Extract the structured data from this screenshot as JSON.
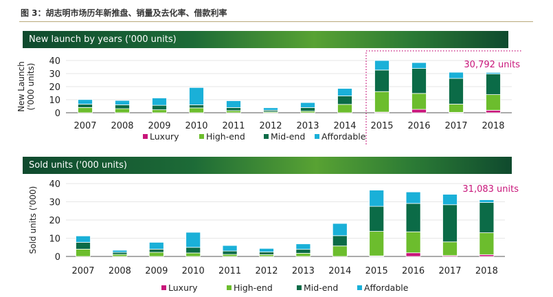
{
  "figure_title": "图 3：胡志明市场历年新推盘、销量及去化率、借款利率",
  "colors": {
    "Luxury": "#c8157a",
    "High-end": "#6cbd2d",
    "Mid-end": "#0b6b47",
    "Affordable": "#1ab0d8",
    "highlight": "#c8157a"
  },
  "chart_data": [
    {
      "type": "bar",
      "stacked": true,
      "title": "New launch by years ('000 units)",
      "ylabel": "New Launch ('000 units)",
      "ylim": [
        0,
        40
      ],
      "yticks": [
        0,
        10,
        20,
        30,
        40
      ],
      "grid": true,
      "legend": "bottom",
      "categories": [
        "2007",
        "2008",
        "2009",
        "2010",
        "2011",
        "2012",
        "2013",
        "2014",
        "2015",
        "2016",
        "2017",
        "2018"
      ],
      "series": [
        {
          "name": "Luxury",
          "values": [
            0,
            0,
            0,
            0,
            0,
            0,
            0,
            0,
            0.5,
            2.6,
            0.3,
            1.9
          ]
        },
        {
          "name": "High-end",
          "values": [
            4,
            3.1,
            2.3,
            3.7,
            1.6,
            0.7,
            1.2,
            6.4,
            15.7,
            12.2,
            6.3,
            12
          ]
        },
        {
          "name": "Mid-end",
          "values": [
            2.6,
            3,
            3.4,
            2.4,
            2.4,
            1.2,
            2.8,
            6.5,
            16.5,
            19.1,
            19.7,
            15.8
          ]
        },
        {
          "name": "Affordable",
          "values": [
            3.5,
            3.3,
            5.6,
            13.2,
            5.2,
            1.9,
            3.8,
            5.7,
            7.3,
            4.5,
            4.7,
            1.1
          ]
        }
      ],
      "annotation": "30,792 units"
    },
    {
      "type": "bar",
      "stacked": true,
      "title": "Sold units ('000 units)",
      "ylabel": "Sold units ('000)",
      "ylim": [
        0,
        40
      ],
      "yticks": [
        0,
        10,
        20,
        30,
        40
      ],
      "grid": true,
      "legend": "bottom",
      "categories": [
        "2007",
        "2008",
        "2009",
        "2010",
        "2011",
        "2012",
        "2013",
        "2014",
        "2015",
        "2016",
        "2017",
        "2018"
      ],
      "series": [
        {
          "name": "Luxury",
          "values": [
            0,
            0,
            0,
            0,
            0,
            0,
            0,
            0,
            0.3,
            2,
            0.5,
            1
          ]
        },
        {
          "name": "High-end",
          "values": [
            4,
            1.1,
            2.25,
            1.9,
            1.1,
            1,
            1.75,
            5.75,
            13.45,
            11.5,
            7.5,
            12
          ]
        },
        {
          "name": "Mid-end",
          "values": [
            3.75,
            1.15,
            1.75,
            3.1,
            1.9,
            1.5,
            2.15,
            5.65,
            13.75,
            15.6,
            20.4,
            16.6
          ]
        },
        {
          "name": "Affordable",
          "values": [
            3.5,
            1.15,
            3.75,
            8.25,
            3,
            1.9,
            3,
            6.7,
            8.9,
            6.3,
            5.7,
            1.5
          ]
        }
      ],
      "annotation": "31,083 units"
    }
  ]
}
